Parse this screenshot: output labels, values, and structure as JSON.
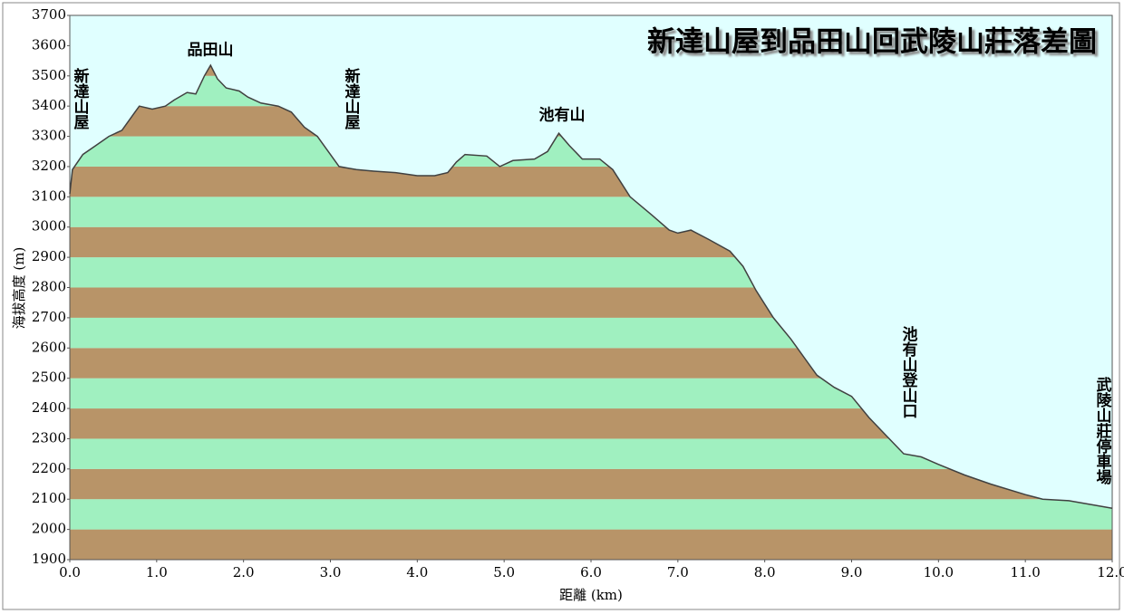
{
  "chart_data": {
    "type": "area",
    "title": "新達山屋到品田山回武陵山莊落差圖",
    "xlabel": "距離 (km)",
    "ylabel": "海拔高度 (m)",
    "annotations": [
      "新達山屋",
      "品田山",
      "新達山屋",
      "池有山",
      "池有山登山口",
      "武陵山莊停車場"
    ],
    "x": [
      0.0,
      0.03,
      0.15,
      0.3,
      0.45,
      0.6,
      0.75,
      0.8,
      0.95,
      1.1,
      1.2,
      1.35,
      1.45,
      1.55,
      1.62,
      1.7,
      1.8,
      1.95,
      2.05,
      2.2,
      2.4,
      2.55,
      2.7,
      2.85,
      3.0,
      3.1,
      3.3,
      3.5,
      3.75,
      4.0,
      4.2,
      4.35,
      4.45,
      4.55,
      4.8,
      4.95,
      5.1,
      5.35,
      5.5,
      5.63,
      5.75,
      5.9,
      6.1,
      6.25,
      6.45,
      6.7,
      6.9,
      7.0,
      7.15,
      7.35,
      7.6,
      7.75,
      7.9,
      8.1,
      8.3,
      8.6,
      8.8,
      9.0,
      9.2,
      9.4,
      9.6,
      9.8,
      10.0,
      10.3,
      10.6,
      11.0,
      11.2,
      11.5,
      11.8,
      12.0
    ],
    "values": [
      3110,
      3190,
      3240,
      3270,
      3300,
      3320,
      3380,
      3400,
      3390,
      3400,
      3420,
      3445,
      3440,
      3500,
      3535,
      3490,
      3460,
      3450,
      3430,
      3410,
      3400,
      3380,
      3330,
      3300,
      3240,
      3200,
      3190,
      3185,
      3180,
      3170,
      3170,
      3180,
      3215,
      3240,
      3235,
      3200,
      3220,
      3225,
      3250,
      3310,
      3270,
      3225,
      3225,
      3190,
      3100,
      3040,
      2990,
      2980,
      2990,
      2960,
      2920,
      2870,
      2790,
      2700,
      2630,
      2510,
      2470,
      2440,
      2370,
      2310,
      2250,
      2240,
      2215,
      2180,
      2150,
      2115,
      2100,
      2095,
      2080,
      2070
    ],
    "color": "#404040",
    "band_colors": [
      "#b89468",
      "#a0f0c0"
    ],
    "xlim": [
      0,
      12
    ],
    "ylim": [
      1900,
      3700
    ],
    "xticks": [
      {
        "value": 0,
        "label": "0.0"
      },
      {
        "value": 1,
        "label": "1.0"
      },
      {
        "value": 2,
        "label": "2.0"
      },
      {
        "value": 3,
        "label": "3.0"
      },
      {
        "value": 4,
        "label": "4.0"
      },
      {
        "value": 5,
        "label": "5.0"
      },
      {
        "value": 6,
        "label": "6.0"
      },
      {
        "value": 7,
        "label": "7.0"
      },
      {
        "value": 8,
        "label": "8.0"
      },
      {
        "value": 9,
        "label": "9.0"
      },
      {
        "value": 10,
        "label": "10.0"
      },
      {
        "value": 11,
        "label": "11.0"
      },
      {
        "value": 12,
        "label": "12.0"
      }
    ],
    "yticks": [
      1900,
      2000,
      2100,
      2200,
      2300,
      2400,
      2500,
      2600,
      2700,
      2800,
      2900,
      3000,
      3100,
      3200,
      3300,
      3400,
      3500,
      3600,
      3700
    ]
  }
}
